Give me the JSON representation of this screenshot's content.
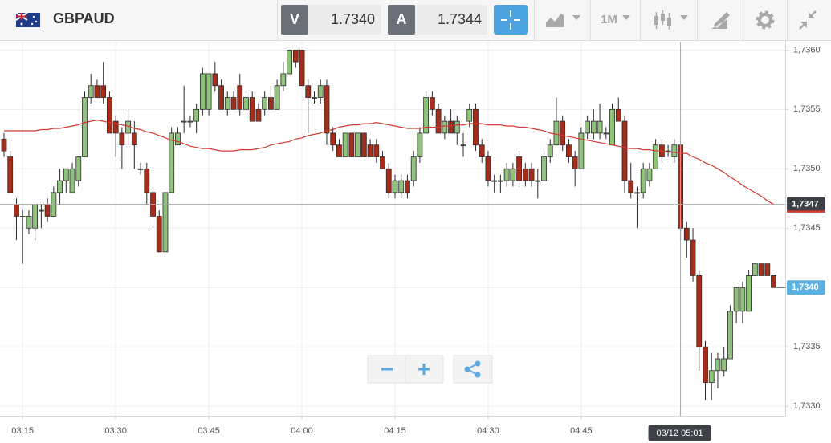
{
  "toolbar": {
    "symbol": "GBPAUD",
    "sell": {
      "label": "V",
      "price": "1.7340"
    },
    "buy": {
      "label": "A",
      "price": "1.7344"
    },
    "timeframe": "1M"
  },
  "chart_data": {
    "type": "candlestick",
    "categories": [
      null,
      null,
      null,
      "03:15",
      null,
      null,
      null,
      null,
      null,
      null,
      null,
      null,
      null,
      null,
      null,
      null,
      null,
      null,
      "03:30",
      null,
      null,
      null,
      null,
      null,
      null,
      null,
      null,
      null,
      null,
      null,
      null,
      null,
      null,
      "03:45",
      null,
      null,
      null,
      null,
      null,
      null,
      null,
      null,
      null,
      null,
      null,
      null,
      null,
      null,
      "04:00",
      null,
      null,
      null,
      null,
      null,
      null,
      null,
      null,
      null,
      null,
      null,
      null,
      null,
      null,
      "04:15",
      null,
      null,
      null,
      null,
      null,
      null,
      null,
      null,
      null,
      null,
      null,
      null,
      null,
      null,
      "04:30",
      null,
      null,
      null,
      null,
      null,
      null,
      null,
      null,
      null,
      null,
      null,
      null,
      null,
      null,
      "04:45",
      null,
      null,
      null,
      null,
      null,
      null,
      null,
      null,
      null,
      null,
      null,
      null,
      null,
      null,
      null,
      null,
      null,
      null,
      null,
      null,
      null,
      null,
      null,
      null,
      null,
      null,
      null,
      null,
      null,
      null,
      null
    ],
    "open": [
      1.73525,
      1.7351,
      1.7347,
      1.7346,
      1.7345,
      1.7345,
      1.73465,
      1.7347,
      1.7346,
      1.7348,
      1.7349,
      1.7348,
      1.7349,
      1.7351,
      1.7356,
      1.7357,
      1.7357,
      1.7356,
      1.7354,
      1.7353,
      1.7353,
      1.7353,
      1.735,
      1.735,
      1.7348,
      1.7346,
      1.7343,
      1.7348,
      1.7352,
      1.7354,
      1.7354,
      1.7354,
      1.7355,
      1.7355,
      1.7358,
      1.7357,
      1.7355,
      1.7356,
      1.7357,
      1.7355,
      1.7356,
      1.7355,
      1.7355,
      1.7356,
      1.7355,
      1.7357,
      1.7358,
      1.736,
      1.736,
      1.7357,
      1.7356,
      1.7356,
      1.7357,
      1.7353,
      1.7352,
      1.7351,
      1.7353,
      1.7351,
      1.7353,
      1.7352,
      1.7352,
      1.7351,
      1.735,
      1.7348,
      1.7348,
      1.7349,
      1.7349,
      1.7351,
      1.7353,
      1.7356,
      1.7355,
      1.7353,
      1.7354,
      1.7353,
      1.7352,
      1.7354,
      1.7355,
      1.7352,
      1.7351,
      1.7349,
      1.7349,
      1.7349,
      1.7349,
      1.7351,
      1.735,
      1.735,
      1.7349,
      1.7349,
      1.7351,
      1.7352,
      1.7354,
      1.7352,
      1.7351,
      1.735,
      1.7353,
      1.7353,
      1.7353,
      1.7353,
      1.7352,
      1.7355,
      1.7354,
      1.7349,
      1.7348,
      1.7348,
      1.7349,
      1.735,
      1.7352,
      1.73515,
      1.7351,
      1.7352,
      1.7345,
      1.7344,
      1.7341,
      1.7335,
      1.7332,
      1.7333,
      1.7333,
      1.7334,
      1.7338,
      1.7338,
      1.7338,
      1.7341,
      1.7342,
      1.7342,
      1.7341
    ],
    "high": [
      1.7353,
      1.73515,
      1.73475,
      1.73465,
      1.73465,
      1.7347,
      1.7347,
      1.73475,
      1.73485,
      1.735,
      1.735,
      1.73505,
      1.7351,
      1.73565,
      1.7358,
      1.73575,
      1.7359,
      1.73565,
      1.73545,
      1.73535,
      1.7355,
      1.7354,
      1.73505,
      1.73505,
      1.73485,
      1.73465,
      1.7348,
      1.73535,
      1.73535,
      1.7357,
      1.73545,
      1.73555,
      1.73585,
      1.7358,
      1.7359,
      1.73575,
      1.73565,
      1.73565,
      1.7358,
      1.73565,
      1.73565,
      1.73555,
      1.73565,
      1.7357,
      1.73575,
      1.7359,
      1.736,
      1.736,
      1.736,
      1.73575,
      1.73565,
      1.73575,
      1.73575,
      1.73535,
      1.73525,
      1.7353,
      1.7353,
      1.7353,
      1.7353,
      1.73525,
      1.73525,
      1.73515,
      1.73505,
      1.73495,
      1.73495,
      1.73495,
      1.73515,
      1.73535,
      1.73565,
      1.73565,
      1.73555,
      1.73545,
      1.7355,
      1.73545,
      1.7353,
      1.73555,
      1.73555,
      1.73525,
      1.73515,
      1.73495,
      1.73495,
      1.73505,
      1.73505,
      1.73515,
      1.73505,
      1.73505,
      1.735,
      1.73515,
      1.73525,
      1.7356,
      1.73545,
      1.73525,
      1.73515,
      1.73535,
      1.73545,
      1.7355,
      1.73555,
      1.73535,
      1.73555,
      1.7356,
      1.73545,
      1.73505,
      1.73485,
      1.73505,
      1.73505,
      1.73525,
      1.73525,
      1.7352,
      1.73525,
      1.7352,
      1.73455,
      1.7345,
      1.73415,
      1.73355,
      1.73345,
      1.73345,
      1.7335,
      1.73385,
      1.734,
      1.73405,
      1.73415,
      1.7342,
      1.7342,
      1.7342,
      1.7341
    ],
    "low": [
      1.7351,
      1.7348,
      1.7344,
      1.7342,
      1.73445,
      1.7344,
      1.7345,
      1.73455,
      1.7346,
      1.7347,
      1.7348,
      1.7348,
      1.73485,
      1.7351,
      1.73555,
      1.7356,
      1.73555,
      1.7353,
      1.7351,
      1.735,
      1.7352,
      1.735,
      1.73495,
      1.7347,
      1.7345,
      1.7343,
      1.7343,
      1.7348,
      1.7352,
      1.7353,
      1.73535,
      1.7353,
      1.73545,
      1.73545,
      1.73565,
      1.7355,
      1.73545,
      1.7355,
      1.73545,
      1.73545,
      1.7354,
      1.7354,
      1.73545,
      1.7355,
      1.7355,
      1.73565,
      1.7358,
      1.73585,
      1.7357,
      1.7353,
      1.73555,
      1.73555,
      1.7352,
      1.73515,
      1.7351,
      1.7351,
      1.7351,
      1.7351,
      1.7351,
      1.7351,
      1.73505,
      1.735,
      1.73475,
      1.73475,
      1.73475,
      1.73475,
      1.73485,
      1.73505,
      1.7353,
      1.73545,
      1.7353,
      1.73525,
      1.7353,
      1.7352,
      1.7351,
      1.73535,
      1.73515,
      1.73505,
      1.73485,
      1.7348,
      1.7348,
      1.73485,
      1.73485,
      1.73485,
      1.73485,
      1.73485,
      1.73475,
      1.7349,
      1.73505,
      1.7352,
      1.73515,
      1.73505,
      1.73485,
      1.735,
      1.73525,
      1.73525,
      1.73525,
      1.73525,
      1.7352,
      1.7354,
      1.7348,
      1.73475,
      1.7345,
      1.73475,
      1.73485,
      1.735,
      1.73505,
      1.7351,
      1.73505,
      1.7344,
      1.73425,
      1.73405,
      1.7333,
      1.73305,
      1.73305,
      1.73315,
      1.73325,
      1.7334,
      1.7337,
      1.7337,
      1.7338,
      1.7341,
      1.7341,
      1.7341,
      1.734
    ],
    "close": [
      1.73515,
      1.7348,
      1.7346,
      1.7346,
      1.7346,
      1.7347,
      1.73465,
      1.7346,
      1.7348,
      1.7349,
      1.735,
      1.735,
      1.7351,
      1.7356,
      1.7357,
      1.7356,
      1.7356,
      1.7353,
      1.7353,
      1.7352,
      1.7354,
      1.7352,
      1.735,
      1.7348,
      1.7346,
      1.7343,
      1.7348,
      1.7353,
      1.7353,
      1.7354,
      1.7354,
      1.7355,
      1.7358,
      1.7358,
      1.7357,
      1.7355,
      1.7356,
      1.7355,
      1.7355,
      1.7356,
      1.7354,
      1.7354,
      1.7356,
      1.7355,
      1.7357,
      1.7358,
      1.736,
      1.7359,
      1.7357,
      1.7356,
      1.7356,
      1.7357,
      1.7353,
      1.7352,
      1.7351,
      1.7353,
      1.7351,
      1.7353,
      1.7351,
      1.7351,
      1.7351,
      1.735,
      1.7348,
      1.7349,
      1.7349,
      1.7348,
      1.7351,
      1.7353,
      1.7356,
      1.7355,
      1.7353,
      1.7354,
      1.7353,
      1.7354,
      1.7352,
      1.7355,
      1.7352,
      1.7351,
      1.7349,
      1.7349,
      1.7349,
      1.735,
      1.735,
      1.7349,
      1.7349,
      1.7349,
      1.7349,
      1.7351,
      1.7352,
      1.7354,
      1.7352,
      1.7351,
      1.735,
      1.7353,
      1.7354,
      1.7354,
      1.7354,
      1.7353,
      1.7355,
      1.7354,
      1.7349,
      1.7348,
      1.7348,
      1.735,
      1.735,
      1.7352,
      1.7351,
      1.73515,
      1.7352,
      1.7345,
      1.7344,
      1.7341,
      1.7335,
      1.7332,
      1.7333,
      1.7334,
      1.7334,
      1.7338,
      1.734,
      1.734,
      1.7341,
      1.7342,
      1.7341,
      1.7341,
      1.734
    ],
    "up_color": "#8fc27b",
    "down_color": "#a52d1c",
    "moving_average": {
      "color": "#d33a32",
      "values": [
        1.73532,
        1.73532,
        1.73532,
        1.73532,
        1.73532,
        1.73532,
        1.73533,
        1.73533,
        1.73534,
        1.73534,
        1.73535,
        1.73536,
        1.73537,
        1.73539,
        1.7354,
        1.73541,
        1.7354,
        1.73539,
        1.73538,
        1.73537,
        1.73536,
        1.73534,
        1.73533,
        1.73531,
        1.7353,
        1.73528,
        1.73526,
        1.73524,
        1.73523,
        1.73521,
        1.73519,
        1.73518,
        1.73517,
        1.73517,
        1.73516,
        1.73515,
        1.73515,
        1.73515,
        1.73516,
        1.73516,
        1.73516,
        1.73517,
        1.73518,
        1.7352,
        1.73521,
        1.73522,
        1.73523,
        1.73525,
        1.73526,
        1.73528,
        1.73529,
        1.7353,
        1.73532,
        1.73533,
        1.73535,
        1.73536,
        1.73537,
        1.73537,
        1.73538,
        1.73538,
        1.73539,
        1.73538,
        1.73537,
        1.73536,
        1.73535,
        1.73534,
        1.73534,
        1.73534,
        1.73535,
        1.73535,
        1.73535,
        1.73536,
        1.73536,
        1.73537,
        1.73537,
        1.73538,
        1.73538,
        1.73538,
        1.73537,
        1.73537,
        1.73537,
        1.73536,
        1.73536,
        1.73535,
        1.73535,
        1.73534,
        1.73533,
        1.73532,
        1.7353,
        1.73529,
        1.73528,
        1.73527,
        1.73526,
        1.73525,
        1.73524,
        1.73523,
        1.73522,
        1.73521,
        1.7352,
        1.73519,
        1.73518,
        1.73517,
        1.73517,
        1.73516,
        1.73516,
        1.73515,
        1.73515,
        1.73514,
        1.73514,
        1.73513,
        1.73513,
        1.7351,
        1.73508,
        1.73505,
        1.73503,
        1.735,
        1.73497,
        1.73493,
        1.7349,
        1.73486,
        1.73483,
        1.7348,
        1.73477,
        1.73473,
        1.7347
      ]
    },
    "ylim": [
      1.73292,
      1.73607
    ],
    "yticks": [
      {
        "value": 1.733,
        "label": "1,7330"
      },
      {
        "value": 1.7335,
        "label": "1,7335"
      },
      {
        "value": 1.734,
        "label": "1,7340"
      },
      {
        "value": 1.7345,
        "label": "1,7345"
      },
      {
        "value": 1.735,
        "label": "1,7350"
      },
      {
        "value": 1.7355,
        "label": "1,7355"
      },
      {
        "value": 1.736,
        "label": "1,7360"
      }
    ],
    "grid": true,
    "crosshair": {
      "x_label": "03/12 05:01",
      "y": {
        "value": 1.7347,
        "label": "1,7347"
      }
    },
    "last_price": {
      "value": 1.734,
      "label": "1,7340"
    }
  }
}
